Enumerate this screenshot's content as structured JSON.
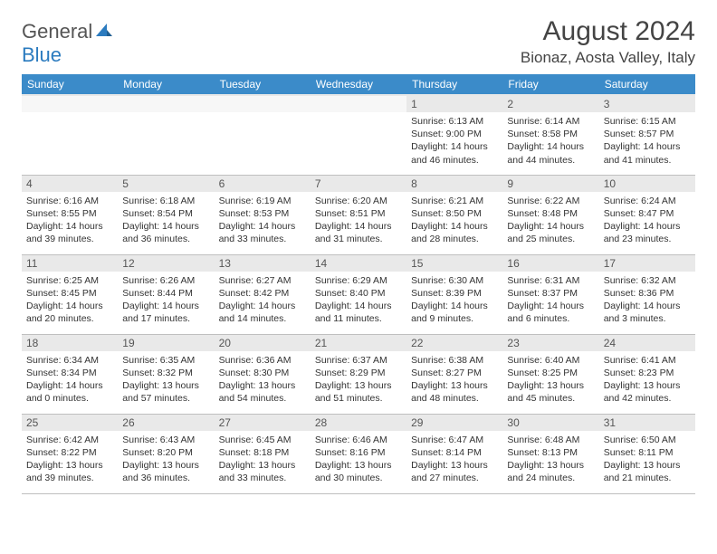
{
  "brand": {
    "name_part1": "General",
    "name_part2": "Blue",
    "icon_color": "#2b7bbf",
    "text_color_gray": "#555555",
    "text_color_blue": "#2b7bbf"
  },
  "header": {
    "month_title": "August 2024",
    "location": "Bionaz, Aosta Valley, Italy"
  },
  "colors": {
    "header_row_bg": "#3b8bc9",
    "header_row_text": "#ffffff",
    "daynum_bg": "#e9e9e9",
    "cell_border": "#bfbfbf",
    "page_bg": "#ffffff"
  },
  "weekdays": [
    "Sunday",
    "Monday",
    "Tuesday",
    "Wednesday",
    "Thursday",
    "Friday",
    "Saturday"
  ],
  "days": [
    {
      "n": 1,
      "sunrise": "Sunrise: 6:13 AM",
      "sunset": "Sunset: 9:00 PM",
      "daylight": "Daylight: 14 hours and 46 minutes."
    },
    {
      "n": 2,
      "sunrise": "Sunrise: 6:14 AM",
      "sunset": "Sunset: 8:58 PM",
      "daylight": "Daylight: 14 hours and 44 minutes."
    },
    {
      "n": 3,
      "sunrise": "Sunrise: 6:15 AM",
      "sunset": "Sunset: 8:57 PM",
      "daylight": "Daylight: 14 hours and 41 minutes."
    },
    {
      "n": 4,
      "sunrise": "Sunrise: 6:16 AM",
      "sunset": "Sunset: 8:55 PM",
      "daylight": "Daylight: 14 hours and 39 minutes."
    },
    {
      "n": 5,
      "sunrise": "Sunrise: 6:18 AM",
      "sunset": "Sunset: 8:54 PM",
      "daylight": "Daylight: 14 hours and 36 minutes."
    },
    {
      "n": 6,
      "sunrise": "Sunrise: 6:19 AM",
      "sunset": "Sunset: 8:53 PM",
      "daylight": "Daylight: 14 hours and 33 minutes."
    },
    {
      "n": 7,
      "sunrise": "Sunrise: 6:20 AM",
      "sunset": "Sunset: 8:51 PM",
      "daylight": "Daylight: 14 hours and 31 minutes."
    },
    {
      "n": 8,
      "sunrise": "Sunrise: 6:21 AM",
      "sunset": "Sunset: 8:50 PM",
      "daylight": "Daylight: 14 hours and 28 minutes."
    },
    {
      "n": 9,
      "sunrise": "Sunrise: 6:22 AM",
      "sunset": "Sunset: 8:48 PM",
      "daylight": "Daylight: 14 hours and 25 minutes."
    },
    {
      "n": 10,
      "sunrise": "Sunrise: 6:24 AM",
      "sunset": "Sunset: 8:47 PM",
      "daylight": "Daylight: 14 hours and 23 minutes."
    },
    {
      "n": 11,
      "sunrise": "Sunrise: 6:25 AM",
      "sunset": "Sunset: 8:45 PM",
      "daylight": "Daylight: 14 hours and 20 minutes."
    },
    {
      "n": 12,
      "sunrise": "Sunrise: 6:26 AM",
      "sunset": "Sunset: 8:44 PM",
      "daylight": "Daylight: 14 hours and 17 minutes."
    },
    {
      "n": 13,
      "sunrise": "Sunrise: 6:27 AM",
      "sunset": "Sunset: 8:42 PM",
      "daylight": "Daylight: 14 hours and 14 minutes."
    },
    {
      "n": 14,
      "sunrise": "Sunrise: 6:29 AM",
      "sunset": "Sunset: 8:40 PM",
      "daylight": "Daylight: 14 hours and 11 minutes."
    },
    {
      "n": 15,
      "sunrise": "Sunrise: 6:30 AM",
      "sunset": "Sunset: 8:39 PM",
      "daylight": "Daylight: 14 hours and 9 minutes."
    },
    {
      "n": 16,
      "sunrise": "Sunrise: 6:31 AM",
      "sunset": "Sunset: 8:37 PM",
      "daylight": "Daylight: 14 hours and 6 minutes."
    },
    {
      "n": 17,
      "sunrise": "Sunrise: 6:32 AM",
      "sunset": "Sunset: 8:36 PM",
      "daylight": "Daylight: 14 hours and 3 minutes."
    },
    {
      "n": 18,
      "sunrise": "Sunrise: 6:34 AM",
      "sunset": "Sunset: 8:34 PM",
      "daylight": "Daylight: 14 hours and 0 minutes."
    },
    {
      "n": 19,
      "sunrise": "Sunrise: 6:35 AM",
      "sunset": "Sunset: 8:32 PM",
      "daylight": "Daylight: 13 hours and 57 minutes."
    },
    {
      "n": 20,
      "sunrise": "Sunrise: 6:36 AM",
      "sunset": "Sunset: 8:30 PM",
      "daylight": "Daylight: 13 hours and 54 minutes."
    },
    {
      "n": 21,
      "sunrise": "Sunrise: 6:37 AM",
      "sunset": "Sunset: 8:29 PM",
      "daylight": "Daylight: 13 hours and 51 minutes."
    },
    {
      "n": 22,
      "sunrise": "Sunrise: 6:38 AM",
      "sunset": "Sunset: 8:27 PM",
      "daylight": "Daylight: 13 hours and 48 minutes."
    },
    {
      "n": 23,
      "sunrise": "Sunrise: 6:40 AM",
      "sunset": "Sunset: 8:25 PM",
      "daylight": "Daylight: 13 hours and 45 minutes."
    },
    {
      "n": 24,
      "sunrise": "Sunrise: 6:41 AM",
      "sunset": "Sunset: 8:23 PM",
      "daylight": "Daylight: 13 hours and 42 minutes."
    },
    {
      "n": 25,
      "sunrise": "Sunrise: 6:42 AM",
      "sunset": "Sunset: 8:22 PM",
      "daylight": "Daylight: 13 hours and 39 minutes."
    },
    {
      "n": 26,
      "sunrise": "Sunrise: 6:43 AM",
      "sunset": "Sunset: 8:20 PM",
      "daylight": "Daylight: 13 hours and 36 minutes."
    },
    {
      "n": 27,
      "sunrise": "Sunrise: 6:45 AM",
      "sunset": "Sunset: 8:18 PM",
      "daylight": "Daylight: 13 hours and 33 minutes."
    },
    {
      "n": 28,
      "sunrise": "Sunrise: 6:46 AM",
      "sunset": "Sunset: 8:16 PM",
      "daylight": "Daylight: 13 hours and 30 minutes."
    },
    {
      "n": 29,
      "sunrise": "Sunrise: 6:47 AM",
      "sunset": "Sunset: 8:14 PM",
      "daylight": "Daylight: 13 hours and 27 minutes."
    },
    {
      "n": 30,
      "sunrise": "Sunrise: 6:48 AM",
      "sunset": "Sunset: 8:13 PM",
      "daylight": "Daylight: 13 hours and 24 minutes."
    },
    {
      "n": 31,
      "sunrise": "Sunrise: 6:50 AM",
      "sunset": "Sunset: 8:11 PM",
      "daylight": "Daylight: 13 hours and 21 minutes."
    }
  ],
  "layout": {
    "start_weekday_index": 4,
    "weeks": 5
  }
}
